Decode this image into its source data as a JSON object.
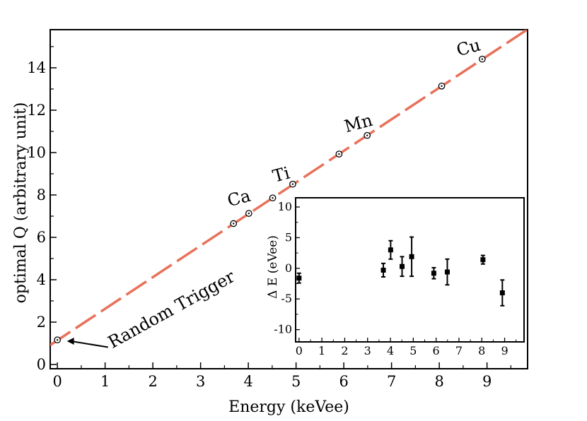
{
  "chart_data": [
    {
      "type": "scatter",
      "xlabel": "Energy (keVee)",
      "ylabel": "optimal Q (arbitrary unit)",
      "xlim": [
        -0.15,
        9.85
      ],
      "ylim": [
        -0.2,
        15.8
      ],
      "xticks": [
        0,
        1,
        2,
        3,
        4,
        5,
        6,
        7,
        8,
        9
      ],
      "yticks": [
        0,
        2,
        4,
        6,
        8,
        10,
        12,
        14
      ],
      "fit_line": {
        "slope": 1.49,
        "intercept": 1.14,
        "color": "#e8715a",
        "style": "dashed"
      },
      "points": [
        {
          "x": 0.0,
          "y": 1.16
        },
        {
          "x": 3.69,
          "y": 6.65
        },
        {
          "x": 4.01,
          "y": 7.13
        },
        {
          "x": 4.51,
          "y": 7.86
        },
        {
          "x": 4.93,
          "y": 8.51
        },
        {
          "x": 5.9,
          "y": 9.93
        },
        {
          "x": 6.49,
          "y": 10.81
        },
        {
          "x": 8.05,
          "y": 13.14
        },
        {
          "x": 8.9,
          "y": 14.41
        }
      ],
      "annotations": [
        {
          "text": "Ca",
          "x": 3.6,
          "y": 7.45,
          "rotate": -15
        },
        {
          "text": "Ti",
          "x": 4.55,
          "y": 8.6,
          "rotate": -15
        },
        {
          "text": "Mn",
          "x": 6.05,
          "y": 10.95,
          "rotate": -15
        },
        {
          "text": "Cu",
          "x": 8.4,
          "y": 14.55,
          "rotate": -15
        },
        {
          "text": "Random Trigger",
          "x": 1.15,
          "y": 0.75,
          "rotate": -29,
          "arrow_to": {
            "x": 0.2,
            "y": 1.1
          }
        }
      ]
    },
    {
      "type": "scatter",
      "xlabel": "",
      "ylabel": "Δ E (eVee)",
      "xlim": [
        -0.15,
        9.85
      ],
      "ylim": [
        -12,
        11.5
      ],
      "xticks": [
        0,
        1,
        2,
        3,
        4,
        5,
        6,
        7,
        8,
        9
      ],
      "yticks": [
        -10,
        -5,
        0,
        5,
        10
      ],
      "points": [
        {
          "x": 0.0,
          "y": -1.6,
          "err": 0.8
        },
        {
          "x": 3.69,
          "y": -0.3,
          "err": 1.1
        },
        {
          "x": 4.01,
          "y": 3.0,
          "err": 1.5
        },
        {
          "x": 4.51,
          "y": 0.3,
          "err": 1.6
        },
        {
          "x": 4.93,
          "y": 1.9,
          "err": 3.2
        },
        {
          "x": 5.9,
          "y": -0.8,
          "err": 0.9
        },
        {
          "x": 6.49,
          "y": -0.6,
          "err": 2.1
        },
        {
          "x": 8.05,
          "y": 1.4,
          "err": 0.7
        },
        {
          "x": 8.9,
          "y": -4.0,
          "err": 2.1
        }
      ]
    }
  ]
}
